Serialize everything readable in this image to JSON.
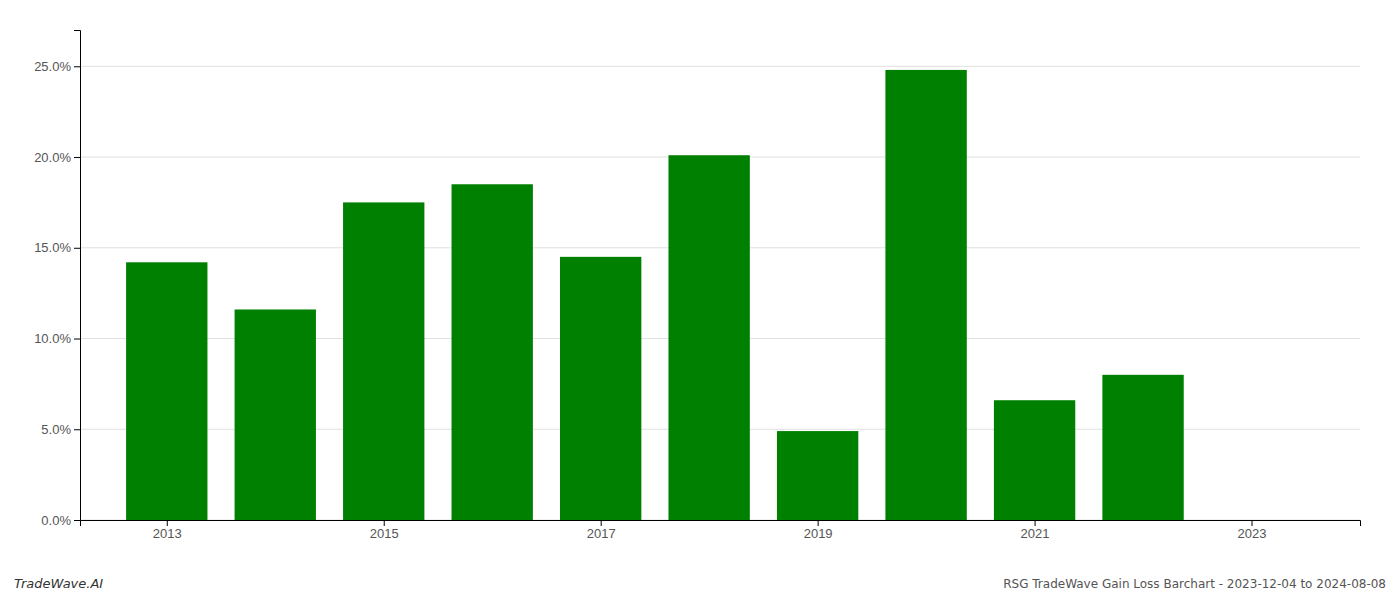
{
  "chart_data": {
    "type": "bar",
    "x": [
      2013,
      2014,
      2015,
      2016,
      2017,
      2018,
      2019,
      2020,
      2021,
      2022
    ],
    "values": [
      0.142,
      0.116,
      0.175,
      0.185,
      0.145,
      0.201,
      0.049,
      0.248,
      0.066,
      0.08
    ],
    "color": "#008000",
    "xlim": [
      2012.2,
      2024.0
    ],
    "xticks": [
      2013,
      2015,
      2017,
      2019,
      2021,
      2023
    ],
    "ylim": [
      0,
      0.27
    ],
    "yticks": [
      {
        "value": 0.0,
        "label": "0.0%"
      },
      {
        "value": 0.05,
        "label": "5.0%"
      },
      {
        "value": 0.1,
        "label": "10.0%"
      },
      {
        "value": 0.15,
        "label": "15.0%"
      },
      {
        "value": 0.2,
        "label": "20.0%"
      },
      {
        "value": 0.25,
        "label": "25.0%"
      }
    ],
    "grid": true,
    "annotations": [
      "TradeWave.AI",
      "RSG TradeWave Gain Loss Barchart - 2023-12-04 to 2024-08-08"
    ]
  }
}
